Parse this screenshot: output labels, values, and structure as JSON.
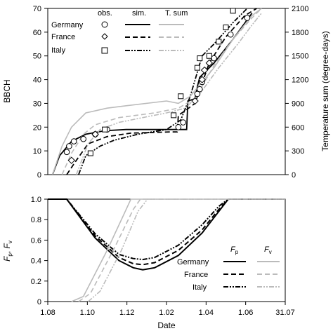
{
  "chart_data": [
    {
      "type": "line",
      "ylabel": "BBCH",
      "y2label": "Temperature sum (degree-days)",
      "ylim": [
        0,
        70
      ],
      "y2lim": [
        0,
        2100
      ],
      "x_ticks": [
        "1.08",
        "1.10",
        "1.12",
        "1.02",
        "1.04",
        "1.06",
        "31.07"
      ],
      "y_ticks": [
        "0",
        "10",
        "20",
        "30",
        "40",
        "50",
        "60",
        "70"
      ],
      "y2_ticks": [
        "0",
        "300",
        "600",
        "900",
        "1200",
        "1500",
        "1800",
        "2100"
      ],
      "legend": {
        "headers": [
          "obs.",
          "sim.",
          "T. sum"
        ],
        "rows": [
          "Germany",
          "France",
          "Italy"
        ]
      },
      "series": [
        {
          "name": "Germany",
          "kind": "obs.",
          "marker": "circle",
          "points": [
            [
              0.08,
              9.5
            ],
            [
              0.09,
              12
            ],
            [
              0.11,
              14
            ],
            [
              0.15,
              15
            ],
            [
              0.2,
              17
            ],
            [
              0.25,
              19
            ],
            [
              0.55,
              20
            ],
            [
              0.57,
              22
            ],
            [
              0.63,
              34
            ],
            [
              0.64,
              36
            ],
            [
              0.65,
              39
            ],
            [
              0.7,
              49
            ],
            [
              0.77,
              59
            ],
            [
              0.84,
              66
            ]
          ]
        },
        {
          "name": "France",
          "kind": "obs.",
          "marker": "diamond",
          "points": [
            [
              0.1,
              6
            ],
            [
              0.2,
              17
            ],
            [
              0.62,
              31
            ],
            [
              0.65,
              40
            ],
            [
              0.66,
              44
            ],
            [
              0.68,
              47
            ]
          ]
        },
        {
          "name": "Italy",
          "kind": "obs.",
          "marker": "square",
          "points": [
            [
              0.18,
              9
            ],
            [
              0.24,
              19
            ],
            [
              0.53,
              25
            ],
            [
              0.56,
              33
            ],
            [
              0.63,
              45
            ],
            [
              0.64,
              49
            ],
            [
              0.68,
              50
            ],
            [
              0.72,
              56
            ],
            [
              0.75,
              62
            ],
            [
              0.78,
              69
            ]
          ]
        },
        {
          "name": "Germany",
          "kind": "sim.",
          "points": [
            [
              0.02,
              0
            ],
            [
              0.05,
              8
            ],
            [
              0.1,
              14
            ],
            [
              0.16,
              17
            ],
            [
              0.24,
              18.5
            ],
            [
              0.33,
              19
            ],
            [
              0.57,
              19
            ],
            [
              0.585,
              19
            ],
            [
              0.59,
              31
            ],
            [
              0.62,
              32
            ],
            [
              0.63,
              37
            ],
            [
              0.64,
              41
            ],
            [
              0.7,
              47
            ],
            [
              0.78,
              57
            ],
            [
              0.86,
              68
            ]
          ]
        },
        {
          "name": "France",
          "kind": "sim.",
          "points": [
            [
              0.08,
              0
            ],
            [
              0.12,
              6
            ],
            [
              0.17,
              13
            ],
            [
              0.25,
              16
            ],
            [
              0.35,
              17.5
            ],
            [
              0.52,
              18
            ],
            [
              0.545,
              18
            ],
            [
              0.55,
              25
            ],
            [
              0.58,
              27
            ],
            [
              0.62,
              30
            ],
            [
              0.68,
              47
            ],
            [
              0.75,
              58
            ],
            [
              0.83,
              67
            ],
            [
              0.88,
              70
            ]
          ]
        },
        {
          "name": "Italy",
          "kind": "sim.",
          "points": [
            [
              0.13,
              0
            ],
            [
              0.16,
              8
            ],
            [
              0.22,
              12
            ],
            [
              0.28,
              14.5
            ],
            [
              0.38,
              17
            ],
            [
              0.5,
              19
            ],
            [
              0.56,
              23
            ],
            [
              0.6,
              33
            ],
            [
              0.65,
              50
            ],
            [
              0.7,
              55
            ],
            [
              0.78,
              64
            ],
            [
              0.84,
              70
            ]
          ]
        },
        {
          "name": "Germany",
          "kind": "T. sum",
          "points": [
            [
              0.02,
              0
            ],
            [
              0.06,
              12
            ],
            [
              0.1,
              20
            ],
            [
              0.16,
              26
            ],
            [
              0.25,
              28
            ],
            [
              0.33,
              29
            ],
            [
              0.5,
              31
            ],
            [
              0.55,
              30
            ],
            [
              0.6,
              33
            ],
            [
              0.7,
              45
            ],
            [
              0.78,
              57
            ],
            [
              0.86,
              67
            ],
            [
              0.9,
              70
            ]
          ]
        },
        {
          "name": "France",
          "kind": "T. sum",
          "points": [
            [
              0.06,
              0
            ],
            [
              0.1,
              9
            ],
            [
              0.15,
              17
            ],
            [
              0.2,
              21
            ],
            [
              0.3,
              24
            ],
            [
              0.45,
              26
            ],
            [
              0.55,
              28
            ],
            [
              0.62,
              32
            ],
            [
              0.7,
              46
            ],
            [
              0.78,
              57
            ],
            [
              0.86,
              66
            ],
            [
              0.9,
              70
            ]
          ]
        },
        {
          "name": "Italy",
          "kind": "T. sum",
          "points": [
            [
              0.12,
              0
            ],
            [
              0.17,
              13
            ],
            [
              0.22,
              19
            ],
            [
              0.3,
              22
            ],
            [
              0.4,
              24
            ],
            [
              0.5,
              26
            ],
            [
              0.58,
              28
            ],
            [
              0.64,
              34
            ],
            [
              0.72,
              45
            ],
            [
              0.8,
              55
            ],
            [
              0.86,
              63
            ],
            [
              0.9,
              68
            ]
          ]
        }
      ]
    },
    {
      "type": "line",
      "xlabel": "Date",
      "ylabel": "Fp, Fv",
      "ylim": [
        0,
        1
      ],
      "x_ticks": [
        "1.08",
        "1.10",
        "1.12",
        "1.02",
        "1.04",
        "1.06",
        "31.07"
      ],
      "y_ticks": [
        "0",
        "0.2",
        "0.4",
        "0.6",
        "0.8",
        "1.0"
      ],
      "legend": {
        "headers": [
          "Fp",
          "Fv"
        ],
        "rows": [
          "Germany",
          "France",
          "Italy"
        ]
      },
      "series": [
        {
          "name": "Germany",
          "kind": "Fp",
          "points": [
            [
              0.0,
              1
            ],
            [
              0.08,
              1
            ],
            [
              0.2,
              0.62
            ],
            [
              0.3,
              0.4
            ],
            [
              0.36,
              0.33
            ],
            [
              0.4,
              0.31
            ],
            [
              0.45,
              0.33
            ],
            [
              0.55,
              0.45
            ],
            [
              0.65,
              0.67
            ],
            [
              0.72,
              0.88
            ],
            [
              0.76,
              1
            ],
            [
              1.0,
              1
            ]
          ]
        },
        {
          "name": "France",
          "kind": "Fp",
          "points": [
            [
              0.0,
              1
            ],
            [
              0.08,
              1
            ],
            [
              0.2,
              0.64
            ],
            [
              0.3,
              0.43
            ],
            [
              0.36,
              0.37
            ],
            [
              0.4,
              0.36
            ],
            [
              0.45,
              0.38
            ],
            [
              0.55,
              0.5
            ],
            [
              0.65,
              0.7
            ],
            [
              0.72,
              0.9
            ],
            [
              0.76,
              1
            ],
            [
              1.0,
              1
            ]
          ]
        },
        {
          "name": "Italy",
          "kind": "Fp",
          "points": [
            [
              0.0,
              1
            ],
            [
              0.08,
              1
            ],
            [
              0.2,
              0.66
            ],
            [
              0.3,
              0.46
            ],
            [
              0.36,
              0.42
            ],
            [
              0.4,
              0.41
            ],
            [
              0.45,
              0.43
            ],
            [
              0.55,
              0.55
            ],
            [
              0.65,
              0.75
            ],
            [
              0.72,
              0.93
            ],
            [
              0.76,
              1
            ],
            [
              1.0,
              1
            ]
          ]
        },
        {
          "name": "Germany",
          "kind": "Fv",
          "points": [
            [
              0.1,
              0
            ],
            [
              0.15,
              0.05
            ],
            [
              0.25,
              0.5
            ],
            [
              0.32,
              0.85
            ],
            [
              0.35,
              1
            ],
            [
              1.0,
              1
            ]
          ]
        },
        {
          "name": "France",
          "kind": "Fv",
          "points": [
            [
              0.13,
              0
            ],
            [
              0.18,
              0.08
            ],
            [
              0.28,
              0.52
            ],
            [
              0.36,
              0.9
            ],
            [
              0.39,
              1
            ],
            [
              1.0,
              1
            ]
          ]
        },
        {
          "name": "Italy",
          "kind": "Fv",
          "points": [
            [
              0.17,
              0
            ],
            [
              0.22,
              0.1
            ],
            [
              0.31,
              0.5
            ],
            [
              0.38,
              0.88
            ],
            [
              0.42,
              1
            ],
            [
              1.0,
              1
            ]
          ]
        }
      ]
    }
  ]
}
